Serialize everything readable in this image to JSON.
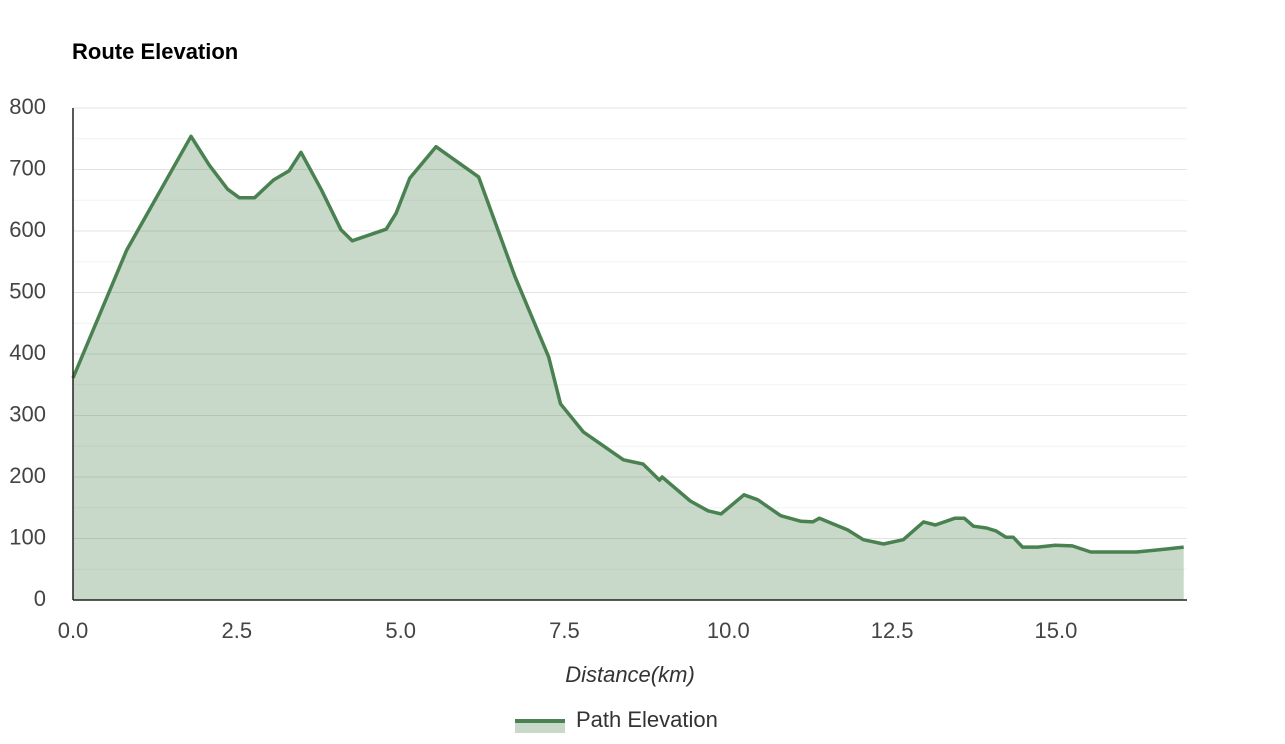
{
  "chart_data": {
    "type": "area",
    "title": "Route Elevation",
    "x_label": "Distance(km)",
    "x": [
      0,
      0.82,
      1.8,
      2.08,
      2.36,
      2.54,
      2.77,
      3.06,
      3.3,
      3.48,
      3.79,
      4.09,
      4.26,
      4.78,
      4.93,
      5.14,
      5.54,
      6.19,
      6.74,
      7.26,
      7.44,
      7.79,
      8.4,
      8.7,
      8.95,
      8.99,
      9.42,
      9.69,
      9.89,
      10.24,
      10.45,
      10.8,
      11.11,
      11.29,
      11.39,
      11.82,
      12.06,
      12.37,
      12.67,
      12.84,
      12.98,
      13.16,
      13.46,
      13.6,
      13.74,
      13.94,
      14.09,
      14.24,
      14.35,
      14.49,
      14.72,
      14.99,
      15.25,
      15.53,
      16.23,
      16.69,
      16.95
    ],
    "series": [
      {
        "name": "Path Elevation",
        "color": "#4a8151",
        "values": [
          361,
          569,
          754,
          707,
          668,
          654,
          654,
          683,
          698,
          728,
          667,
          602,
          584,
          603,
          629,
          686,
          737,
          688,
          527,
          395,
          319,
          273,
          228,
          221,
          195,
          200,
          161,
          145,
          140,
          171,
          163,
          137,
          128,
          127,
          133,
          114,
          98,
          91,
          98,
          114,
          127,
          122,
          133,
          133,
          120,
          117,
          112,
          102,
          102,
          86,
          86,
          89,
          88,
          78,
          78,
          83,
          86
        ]
      }
    ],
    "xlim": [
      0,
      17
    ],
    "ylim": [
      0,
      800
    ],
    "xticks": [
      {
        "value": 0,
        "label": "0.0"
      },
      2.5,
      {
        "value": 5,
        "label": "5.0"
      },
      7.5,
      {
        "value": 10,
        "label": "10.0"
      },
      12.5,
      {
        "value": 15,
        "label": "15.0"
      }
    ],
    "yticks": [
      0,
      100,
      200,
      300,
      400,
      500,
      600,
      700,
      800
    ],
    "minor_yticks": [
      50,
      150,
      250,
      350,
      450,
      550,
      650,
      750
    ],
    "grid": true,
    "legend": "bottom"
  }
}
